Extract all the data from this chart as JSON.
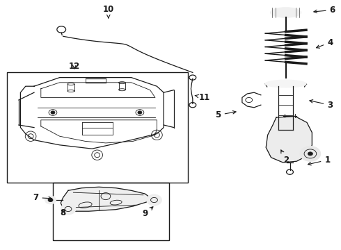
{
  "bg_color": "#ffffff",
  "line_color": "#1a1a1a",
  "fig_width": 4.9,
  "fig_height": 3.6,
  "dpi": 100,
  "label_fontsize": 8.5,
  "label_fontweight": "bold",
  "labels_cfg": {
    "1": {
      "txt": [
        0.96,
        0.64
      ],
      "arr": [
        0.895,
        0.66
      ]
    },
    "2": {
      "txt": [
        0.84,
        0.64
      ],
      "arr": [
        0.82,
        0.59
      ]
    },
    "3": {
      "txt": [
        0.968,
        0.42
      ],
      "arr": [
        0.9,
        0.4
      ]
    },
    "4": {
      "txt": [
        0.968,
        0.17
      ],
      "arr": [
        0.92,
        0.195
      ]
    },
    "5": {
      "txt": [
        0.64,
        0.46
      ],
      "arr": [
        0.7,
        0.445
      ]
    },
    "6": {
      "txt": [
        0.975,
        0.04
      ],
      "arr": [
        0.912,
        0.048
      ]
    },
    "7": {
      "txt": [
        0.105,
        0.79
      ],
      "arr": [
        0.16,
        0.795
      ]
    },
    "8": {
      "txt": [
        0.185,
        0.85
      ],
      "arr": [
        0.185,
        0.83
      ]
    },
    "9": {
      "txt": [
        0.425,
        0.855
      ],
      "arr": [
        0.455,
        0.82
      ]
    },
    "10": {
      "txt": [
        0.318,
        0.038
      ],
      "arr": [
        0.318,
        0.075
      ]
    },
    "11": {
      "txt": [
        0.6,
        0.39
      ],
      "arr": [
        0.565,
        0.38
      ]
    },
    "12": {
      "txt": [
        0.218,
        0.265
      ],
      "arr": [
        0.218,
        0.285
      ]
    }
  }
}
